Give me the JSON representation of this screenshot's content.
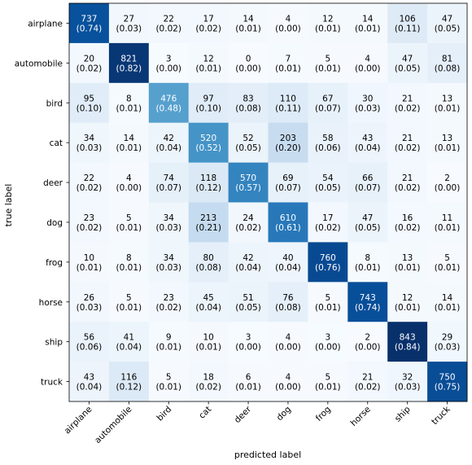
{
  "chart_data": {
    "type": "heatmap",
    "xlabel": "predicted label",
    "ylabel": "true label",
    "x_categories": [
      "airplane",
      "automobile",
      "bird",
      "cat",
      "deer",
      "dog",
      "frog",
      "horse",
      "ship",
      "truck"
    ],
    "y_categories": [
      "airplane",
      "automobile",
      "bird",
      "cat",
      "deer",
      "dog",
      "frog",
      "horse",
      "ship",
      "truck"
    ],
    "counts": [
      [
        737,
        27,
        22,
        17,
        14,
        4,
        12,
        14,
        106,
        47
      ],
      [
        20,
        821,
        3,
        12,
        0,
        7,
        5,
        4,
        47,
        81
      ],
      [
        95,
        8,
        476,
        97,
        83,
        110,
        67,
        30,
        21,
        13
      ],
      [
        34,
        14,
        42,
        520,
        52,
        203,
        58,
        43,
        21,
        13
      ],
      [
        22,
        4,
        74,
        118,
        570,
        69,
        54,
        66,
        21,
        2
      ],
      [
        23,
        5,
        34,
        213,
        24,
        610,
        17,
        47,
        16,
        11
      ],
      [
        10,
        8,
        34,
        80,
        42,
        40,
        760,
        8,
        13,
        5
      ],
      [
        26,
        5,
        23,
        45,
        51,
        76,
        5,
        743,
        12,
        14
      ],
      [
        56,
        41,
        9,
        10,
        3,
        4,
        3,
        2,
        843,
        29
      ],
      [
        43,
        116,
        5,
        18,
        6,
        4,
        5,
        21,
        32,
        750
      ]
    ],
    "fractions": [
      [
        "(0.74)",
        "(0.03)",
        "(0.02)",
        "(0.02)",
        "(0.01)",
        "(0.00)",
        "(0.01)",
        "(0.01)",
        "(0.11)",
        "(0.05)"
      ],
      [
        "(0.02)",
        "(0.82)",
        "(0.00)",
        "(0.01)",
        "(0.00)",
        "(0.01)",
        "(0.01)",
        "(0.00)",
        "(0.05)",
        "(0.08)"
      ],
      [
        "(0.10)",
        "(0.01)",
        "(0.48)",
        "(0.10)",
        "(0.08)",
        "(0.11)",
        "(0.07)",
        "(0.03)",
        "(0.02)",
        "(0.01)"
      ],
      [
        "(0.03)",
        "(0.01)",
        "(0.04)",
        "(0.52)",
        "(0.05)",
        "(0.20)",
        "(0.06)",
        "(0.04)",
        "(0.02)",
        "(0.01)"
      ],
      [
        "(0.02)",
        "(0.00)",
        "(0.07)",
        "(0.12)",
        "(0.57)",
        "(0.07)",
        "(0.05)",
        "(0.07)",
        "(0.02)",
        "(0.00)"
      ],
      [
        "(0.02)",
        "(0.01)",
        "(0.03)",
        "(0.21)",
        "(0.02)",
        "(0.61)",
        "(0.02)",
        "(0.05)",
        "(0.02)",
        "(0.01)"
      ],
      [
        "(0.01)",
        "(0.01)",
        "(0.03)",
        "(0.08)",
        "(0.04)",
        "(0.04)",
        "(0.76)",
        "(0.01)",
        "(0.01)",
        "(0.01)"
      ],
      [
        "(0.03)",
        "(0.01)",
        "(0.02)",
        "(0.04)",
        "(0.05)",
        "(0.08)",
        "(0.01)",
        "(0.74)",
        "(0.01)",
        "(0.01)"
      ],
      [
        "(0.06)",
        "(0.04)",
        "(0.01)",
        "(0.01)",
        "(0.00)",
        "(0.00)",
        "(0.00)",
        "(0.00)",
        "(0.84)",
        "(0.03)"
      ],
      [
        "(0.04)",
        "(0.12)",
        "(0.01)",
        "(0.02)",
        "(0.01)",
        "(0.00)",
        "(0.01)",
        "(0.02)",
        "(0.03)",
        "(0.75)"
      ]
    ],
    "color_scale": "Blues",
    "value_range": [
      0,
      843
    ],
    "grid": false
  }
}
